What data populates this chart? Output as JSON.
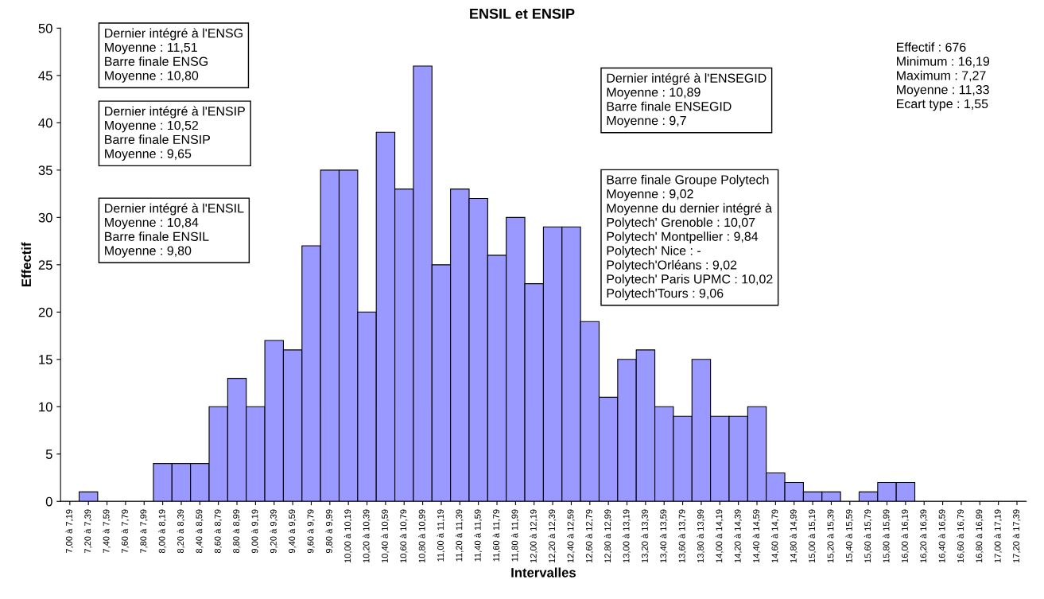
{
  "chart_data": {
    "type": "bar",
    "title": "ENSIL et ENSIP",
    "xlabel": "Intervalles",
    "ylabel": "Effectif",
    "categories": [
      "7,00 à 7,19",
      "7,20 à 7,39",
      "7,40 à 7,59",
      "7,60 à 7,79",
      "7,80 à 7,99",
      "8,00 à 8,19",
      "8,20 à 8,39",
      "8,40 à 8,59",
      "8,60 à 8,79",
      "8,80 à 8,99",
      "9,00 à 9,19",
      "9,20 à 9,39",
      "9,40 à 9,59",
      "9,60 à 9,79",
      "9,80 à 9,99",
      "10,00 à 10,19",
      "10,20 à 10,39",
      "10,40 à 10,59",
      "10,60 à 10,79",
      "10,80 à 10,99",
      "11,00 à 11,19",
      "11,20 à 11,39",
      "11,40 à 11,59",
      "11,60 à 11,79",
      "11,80 à 11,99",
      "12,00 à 12,19",
      "12,20 à 12,39",
      "12,40 à 12,59",
      "12,60 à 12,79",
      "12,80 à 12,99",
      "13,00 à 13,19",
      "13,20 à 13,39",
      "13,40 à 13,59",
      "13,60 à 13,79",
      "13,80 à 13,99",
      "14,00 à 14,19",
      "14,20 à 14,39",
      "14,40 à 14,59",
      "14,60 à 14,79",
      "14,80 à 14,99",
      "15,00 à 15,19",
      "15,20 à 15,39",
      "15,40 à 15,59",
      "15,60 à 15,79",
      "15,80 à 15,99",
      "16,00 à 16,19",
      "16,20 à 16,39",
      "16,40 à 16,59",
      "16,60 à 16,79",
      "16,80 à 16,99",
      "17,00 à 17,19",
      "17,20 à 17,39"
    ],
    "values": [
      0,
      1,
      0,
      0,
      0,
      4,
      4,
      4,
      10,
      13,
      10,
      17,
      16,
      27,
      35,
      35,
      20,
      39,
      33,
      46,
      25,
      33,
      32,
      26,
      30,
      23,
      29,
      29,
      19,
      11,
      15,
      16,
      10,
      9,
      15,
      9,
      9,
      10,
      3,
      2,
      1,
      1,
      0,
      1,
      2,
      2,
      0,
      0,
      0,
      0,
      0,
      0
    ],
    "color": "#9999ff",
    "ylim": [
      0,
      50
    ],
    "yticks": [
      0,
      5,
      10,
      15,
      20,
      25,
      30,
      35,
      40,
      45,
      50
    ],
    "grid": false,
    "legend": false,
    "annotations": [
      "Dernier intégré à l'ENSG\nMoyenne : 11,51\nBarre finale ENSG\nMoyenne : 10,80",
      "Dernier intégré à l'ENSIP\nMoyenne : 10,52\nBarre finale ENSIP\nMoyenne : 9,65",
      "Dernier intégré à l'ENSIL\nMoyenne : 10,84\nBarre finale ENSIL\nMoyenne : 9,80",
      "Dernier intégré à l'ENSEGID\nMoyenne : 10,89\nBarre finale ENSEGID\nMoyenne : 9,7",
      "Barre finale Groupe Polytech\nMoyenne : 9,02\nMoyenne du dernier intégré à\nPolytech' Grenoble : 10,07\nPolytech' Montpellier : 9,84\nPolytech' Nice : -\nPolytech'Orléans : 9,02\nPolytech' Paris UPMC : 10,02\nPolytech'Tours : 9,06",
      "Effectif : 676\nMinimum : 16,19\nMaximum : 7,27\nMoyenne : 11,33\nEcart type : 1,55"
    ]
  }
}
